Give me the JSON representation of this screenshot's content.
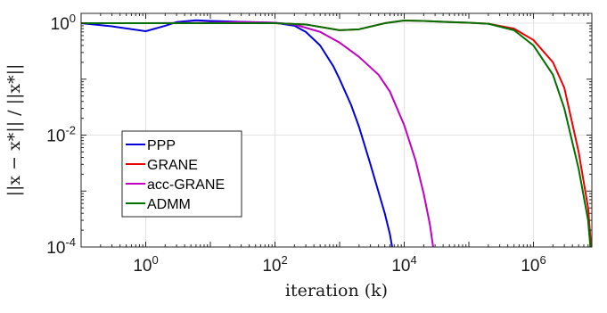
{
  "chart_data": {
    "type": "line",
    "title": "",
    "xlabel": "iteration (k)",
    "ylabel": "||x − x*|| / ||x*||",
    "xscale": "log",
    "yscale": "log",
    "xlim": [
      0.1,
      8000000
    ],
    "ylim": [
      0.0001,
      1.5
    ],
    "x_ticks": [
      {
        "base": "10",
        "exp": "0",
        "value": 1
      },
      {
        "base": "10",
        "exp": "2",
        "value": 100
      },
      {
        "base": "10",
        "exp": "4",
        "value": 10000
      },
      {
        "base": "10",
        "exp": "6",
        "value": 1000000
      }
    ],
    "y_ticks": [
      {
        "base": "10",
        "exp": "0",
        "value": 1
      },
      {
        "base": "10",
        "exp": "-2",
        "value": 0.01
      },
      {
        "base": "10",
        "exp": "-4",
        "value": 0.0001
      }
    ],
    "grid": true,
    "legend_position": "lower-left",
    "series": [
      {
        "name": "PPP",
        "color": "#0000dd",
        "x": [
          0.1,
          0.3,
          1,
          2,
          3,
          6,
          10,
          30,
          100,
          200,
          300,
          500,
          800,
          1000,
          1500,
          2000,
          3000,
          5000,
          6000,
          6500
        ],
        "y": [
          1.0,
          0.88,
          0.72,
          0.9,
          1.05,
          1.13,
          1.1,
          1.06,
          1.02,
          0.9,
          0.7,
          0.4,
          0.17,
          0.1,
          0.035,
          0.014,
          0.003,
          0.0004,
          0.00017,
          0.0001
        ]
      },
      {
        "name": "GRANE",
        "color": "#ee0000",
        "x": [
          0.1,
          1,
          10,
          100,
          300,
          1000,
          2000,
          5000,
          10000,
          20000,
          50000,
          100000,
          200000,
          500000,
          1000000,
          2000000,
          3000000,
          5000000,
          7000000,
          7800000
        ],
        "y": [
          1.0,
          1.0,
          1.0,
          1.0,
          0.95,
          0.75,
          0.78,
          1.0,
          1.12,
          1.1,
          1.05,
          1.02,
          0.98,
          0.8,
          0.5,
          0.2,
          0.07,
          0.005,
          0.0005,
          0.0001
        ]
      },
      {
        "name": "acc-GRANE",
        "color": "#c000c0",
        "x": [
          0.1,
          1,
          10,
          30,
          100,
          200,
          500,
          1000,
          2000,
          4000,
          6000,
          10000,
          15000,
          20000,
          25000,
          28000
        ],
        "y": [
          1.0,
          1.0,
          1.02,
          1.05,
          1.02,
          0.95,
          0.7,
          0.45,
          0.25,
          0.12,
          0.06,
          0.015,
          0.0035,
          0.0009,
          0.00025,
          0.0001
        ]
      },
      {
        "name": "ADMM",
        "color": "#007000",
        "x": [
          0.1,
          1,
          10,
          100,
          300,
          1000,
          2000,
          5000,
          10000,
          20000,
          50000,
          100000,
          200000,
          500000,
          1000000,
          2000000,
          3000000,
          5000000,
          7000000,
          7600000
        ],
        "y": [
          1.0,
          1.0,
          1.0,
          1.0,
          0.95,
          0.75,
          0.78,
          1.0,
          1.12,
          1.1,
          1.05,
          1.02,
          0.98,
          0.75,
          0.4,
          0.12,
          0.03,
          0.0025,
          0.0003,
          0.0001
        ]
      }
    ]
  }
}
